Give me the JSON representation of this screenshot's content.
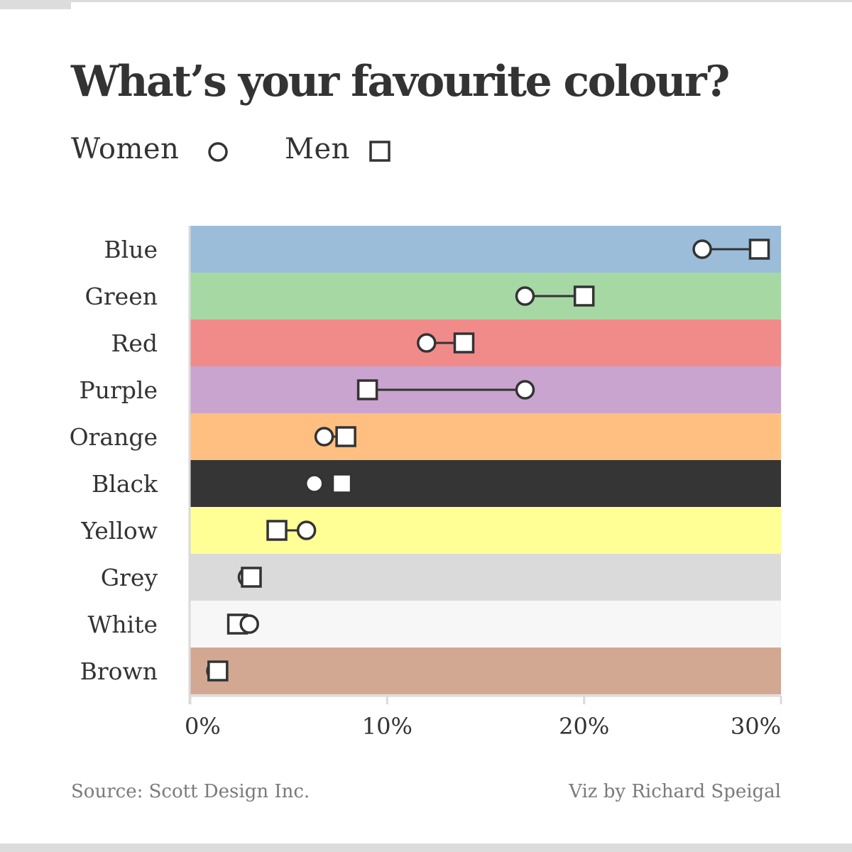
{
  "title": "What’s your favourite colour?",
  "legend": {
    "women_label": "Women",
    "men_label": "Men",
    "women_marker_icon": "circle-marker-icon",
    "men_marker_icon": "square-marker-icon"
  },
  "chart_data": {
    "type": "dumbbell",
    "title": "What’s your favourite colour?",
    "xlabel": "",
    "ylabel": "",
    "xlim": [
      0,
      30
    ],
    "x_ticks": [
      0,
      10,
      20,
      30
    ],
    "x_tick_labels": [
      "0%",
      "10%",
      "20%",
      "30%"
    ],
    "grid": false,
    "legend_position": "top-left",
    "categories": [
      "Blue",
      "Green",
      "Red",
      "Purple",
      "Orange",
      "Black",
      "Yellow",
      "Grey",
      "White",
      "Brown"
    ],
    "band_colors": [
      "#9bbdd9",
      "#a6d8a4",
      "#f08b8a",
      "#c9a4cf",
      "#ffbf80",
      "#353535",
      "#ffff95",
      "#dadada",
      "#f7f7f7",
      "#d2a893"
    ],
    "series": [
      {
        "name": "Women",
        "marker": "circle",
        "values": [
          26,
          17,
          12,
          17,
          6.8,
          6.3,
          5.9,
          2.9,
          3,
          1.3
        ]
      },
      {
        "name": "Men",
        "marker": "square",
        "values": [
          28.9,
          20,
          13.9,
          9,
          7.9,
          7.7,
          4.4,
          3.1,
          2.4,
          1.4
        ]
      }
    ]
  },
  "footer": {
    "source": "Source: Scott Design Inc.",
    "credit": "Viz by Richard Speigal"
  }
}
